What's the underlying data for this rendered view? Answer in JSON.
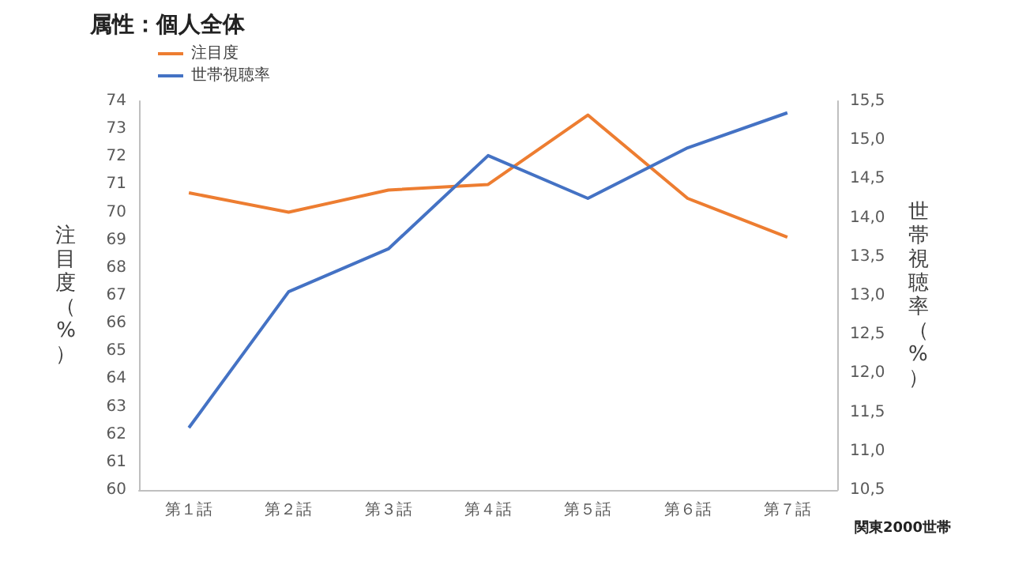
{
  "chart_data": {
    "type": "line",
    "title": "属性：個人全体",
    "categories": [
      "第１話",
      "第２話",
      "第３話",
      "第４話",
      "第５話",
      "第６話",
      "第７話"
    ],
    "series": [
      {
        "name": "注目度",
        "color": "#ed7d31",
        "values": [
          70.7,
          70.0,
          70.8,
          71.0,
          73.5,
          70.5,
          69.1
        ]
      },
      {
        "name": "世帯視聴率",
        "color": "#4472c4",
        "axis": "y2",
        "values": [
          11.3,
          13.05,
          13.6,
          14.8,
          14.25,
          14.9,
          15.35
        ]
      }
    ],
    "ylabel": "注目度（%）",
    "y2label": "世帯視聴率（%）",
    "ylim": [
      60,
      74
    ],
    "yticks": [
      60,
      61,
      62,
      63,
      64,
      65,
      66,
      67,
      68,
      69,
      70,
      71,
      72,
      73,
      74
    ],
    "y2lim": [
      10.5,
      15.5
    ],
    "y2ticks": [
      {
        "value": 10.5,
        "label": "10,5"
      },
      {
        "value": 11,
        "label": "11,0"
      },
      {
        "value": 11.5,
        "label": "11,5"
      },
      {
        "value": 12,
        "label": "12,0"
      },
      {
        "value": 12.5,
        "label": "12,5"
      },
      {
        "value": 13,
        "label": "13,0"
      },
      {
        "value": 13.5,
        "label": "13,5"
      },
      {
        "value": 14,
        "label": "14,0"
      },
      {
        "value": 14.5,
        "label": "14,5"
      },
      {
        "value": 15,
        "label": "15,0"
      },
      {
        "value": 15.5,
        "label": "15,5"
      }
    ],
    "annotations": [
      "関東2000世帯"
    ],
    "legend": "top left",
    "grid": false,
    "marker": "none",
    "line_style": "solid"
  }
}
